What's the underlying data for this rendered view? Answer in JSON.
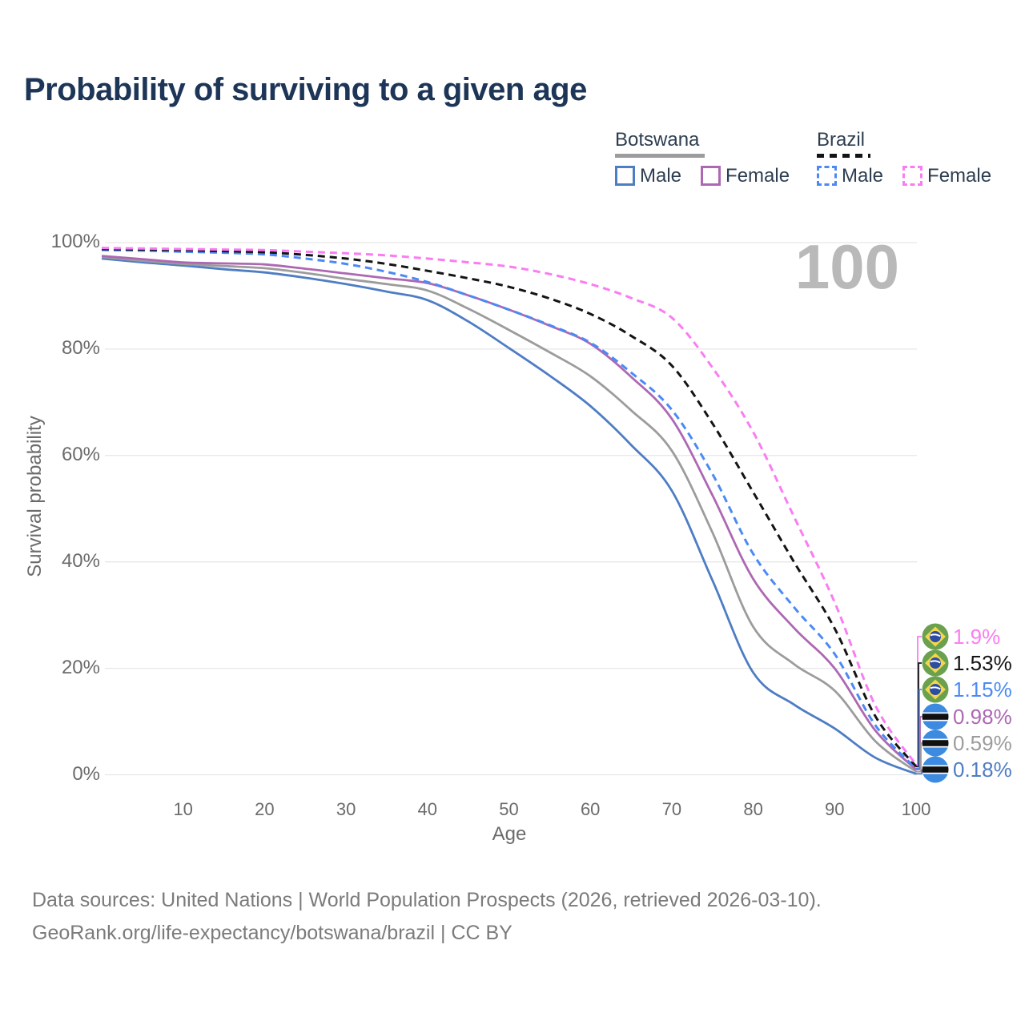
{
  "page": {
    "title": "Probability of surviving to a given age",
    "watermark_age": "100"
  },
  "legend": {
    "groups": [
      {
        "country": "Botswana",
        "underline_style": "solid",
        "underline_color": "#9c9c9c",
        "items": [
          {
            "label": "Male",
            "color": "#4e7dc4",
            "dashed": false
          },
          {
            "label": "Female",
            "color": "#ad68b3",
            "dashed": false
          }
        ]
      },
      {
        "country": "Brazil",
        "underline_style": "dashed",
        "underline_color": "#141414",
        "items": [
          {
            "label": "Male",
            "color": "#4b8af5",
            "dashed": true
          },
          {
            "label": "Female",
            "color": "#f97df2",
            "dashed": true
          }
        ]
      }
    ]
  },
  "chart_data": {
    "type": "line",
    "title": "Probability of surviving to a given age",
    "xlabel": "Age",
    "ylabel": "Survival probability",
    "xlim": [
      0,
      100
    ],
    "ylim": [
      0,
      100
    ],
    "grid": "horizontal-only",
    "gridline_color": "#e7e7e7",
    "y_tick_labels": [
      "0%",
      "20%",
      "40%",
      "60%",
      "80%",
      "100%"
    ],
    "y_gridlines": [
      0,
      20,
      40,
      60,
      80,
      100
    ],
    "x_ticks": [
      10,
      20,
      30,
      40,
      50,
      60,
      70,
      80,
      90,
      100
    ],
    "age_indicator": "100",
    "x": [
      0,
      5,
      10,
      15,
      20,
      25,
      30,
      35,
      40,
      45,
      50,
      55,
      60,
      65,
      70,
      75,
      80,
      85,
      90,
      95,
      100
    ],
    "series": [
      {
        "name": "Botswana Male",
        "country": "Botswana",
        "sex": "Male",
        "color": "#4e7dc4",
        "line_style": "solid",
        "end_label": "0.18%",
        "values": [
          97.0,
          96.3,
          95.7,
          95.0,
          94.4,
          93.4,
          92.2,
          90.8,
          89.2,
          85.2,
          80.2,
          75.0,
          69.3,
          62.0,
          53.4,
          36.5,
          19.2,
          13.2,
          8.7,
          3.2,
          0.18
        ]
      },
      {
        "name": "Botswana Both sexes",
        "country": "Botswana",
        "sex": "Both",
        "color": "#9c9c9c",
        "line_style": "solid",
        "end_label": "0.59%",
        "values": [
          97.3,
          96.6,
          96.0,
          95.6,
          95.2,
          94.3,
          93.2,
          92.2,
          91.0,
          87.6,
          83.6,
          79.4,
          74.9,
          68.5,
          60.9,
          45.5,
          27.8,
          20.8,
          15.8,
          6.3,
          0.59
        ]
      },
      {
        "name": "Botswana Female",
        "country": "Botswana",
        "sex": "Female",
        "color": "#ad68b3",
        "line_style": "solid",
        "end_label": "0.98%",
        "values": [
          97.5,
          96.9,
          96.3,
          96.1,
          95.9,
          95.1,
          94.2,
          93.3,
          92.4,
          90.1,
          87.4,
          84.4,
          81.0,
          74.8,
          66.9,
          52.5,
          36.8,
          27.6,
          20.0,
          8.3,
          0.98
        ]
      },
      {
        "name": "Brazil Male",
        "country": "Brazil",
        "sex": "Male",
        "color": "#4b8af5",
        "line_style": "dashed",
        "end_label": "1.15%",
        "values": [
          98.6,
          98.5,
          98.3,
          98.1,
          97.8,
          97.0,
          96.0,
          94.5,
          92.6,
          90.1,
          87.4,
          84.5,
          81.2,
          75.6,
          68.6,
          56.5,
          41.5,
          31.5,
          22.7,
          9.3,
          1.15
        ]
      },
      {
        "name": "Brazil Both sexes",
        "country": "Brazil",
        "sex": "Both",
        "color": "#141414",
        "line_style": "dashed",
        "end_label": "1.53%",
        "values": [
          98.8,
          98.7,
          98.6,
          98.4,
          98.2,
          97.7,
          97.0,
          96.0,
          94.7,
          93.3,
          91.7,
          89.5,
          86.6,
          82.5,
          76.9,
          66.0,
          53.1,
          40.0,
          27.5,
          11.0,
          1.53
        ]
      },
      {
        "name": "Brazil Female",
        "country": "Brazil",
        "sex": "Female",
        "color": "#f97df2",
        "line_style": "dashed",
        "end_label": "1.9%",
        "values": [
          99.0,
          98.9,
          98.8,
          98.7,
          98.6,
          98.3,
          98.0,
          97.6,
          97.0,
          96.3,
          95.5,
          94.1,
          92.2,
          89.6,
          85.9,
          76.5,
          64.4,
          48.5,
          32.4,
          13.0,
          1.9
        ]
      }
    ]
  },
  "end_labels": [
    {
      "text": "1.9%",
      "value": 1.9,
      "color": "#f97df2",
      "flag": "brazil",
      "series": "Brazil Female"
    },
    {
      "text": "1.53%",
      "value": 1.53,
      "color": "#141414",
      "flag": "brazil",
      "series": "Brazil Both sexes"
    },
    {
      "text": "1.15%",
      "value": 1.15,
      "color": "#4b8af5",
      "flag": "brazil",
      "series": "Brazil Male"
    },
    {
      "text": "0.98%",
      "value": 0.98,
      "color": "#ad68b3",
      "flag": "botswana",
      "series": "Botswana Female"
    },
    {
      "text": "0.59%",
      "value": 0.59,
      "color": "#9c9c9c",
      "flag": "botswana",
      "series": "Botswana Both sexes"
    },
    {
      "text": "0.18%",
      "value": 0.18,
      "color": "#4e7dc4",
      "flag": "botswana",
      "series": "Botswana Male"
    }
  ],
  "footer": {
    "line1": "Data sources: United Nations | World Population Prospects (2026, retrieved 2026-03-10).",
    "line2": "GeoRank.org/life-expectancy/botswana/brazil | CC BY"
  }
}
